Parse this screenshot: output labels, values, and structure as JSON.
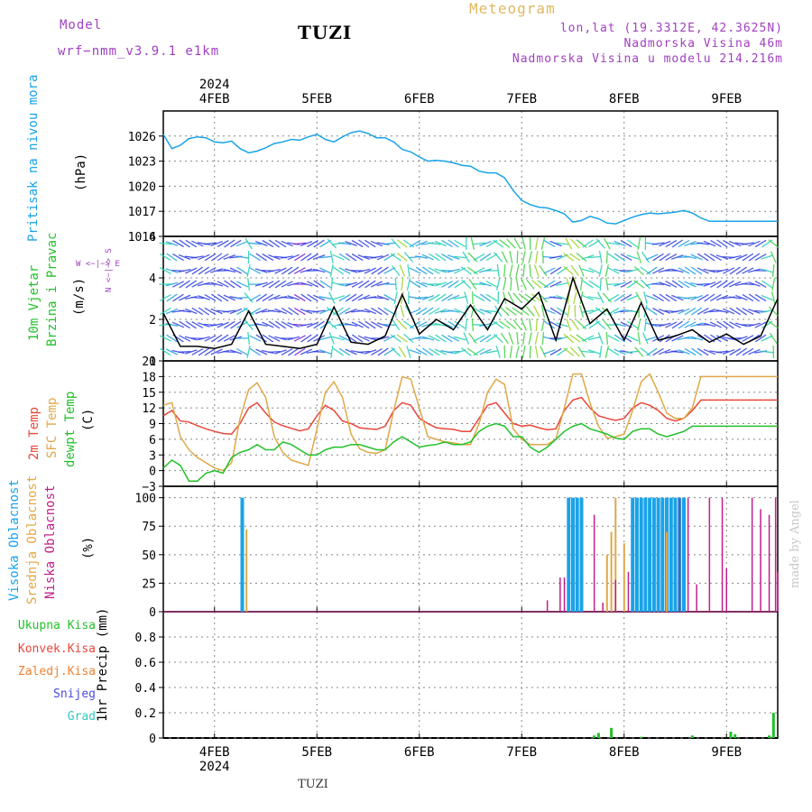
{
  "header": {
    "model_label": "Model",
    "model_name": "wrf−nmm_v3.9.1  e1km",
    "station": "TUZI",
    "meteogram_label": "Meteogram",
    "location": "lon,lat (19.3312E, 42.3625N)",
    "altitude": "Nadmorska Visina 46m",
    "model_altitude": "Nadmorska Visina u modelu 214.216m",
    "top_year": "2024",
    "footer_station": "TUZI",
    "credit": "made by Angel"
  },
  "colors": {
    "pressure": "#1aa3e8",
    "temp2m": "#e8473a",
    "sfc_temp": "#e0a848",
    "dewpt": "#22c02a",
    "high_cloud": "#1aa3e8",
    "mid_cloud": "#e0a848",
    "low_cloud": "#c0208a",
    "precip_total": "#22c02a",
    "precip_conv": "#e8473a",
    "precip_frozen": "#f08030",
    "snow": "#4a4ae0",
    "graupel": "#30c8c0",
    "purple_text": "#a040c0"
  },
  "axis_labels": {
    "pressure": [
      "Pritisak na nivou mora",
      "(hPa)"
    ],
    "wind": [
      "10m Vjetar",
      "Brzina i Pravac",
      "(m/s)"
    ],
    "compass": [
      "W  <−|−>  E",
      "N  <−|−>  S"
    ],
    "temp": [
      "2m Temp",
      "SFC Temp",
      "dewpt Temp",
      "(C)"
    ],
    "cloud": [
      "Visoka Oblacnost",
      "Srednja Oblacnost",
      "Niska Oblacnost",
      "(%)"
    ],
    "precip": [
      "1hr Precip (mm)"
    ]
  },
  "precip_legend": [
    "Ukupna Kisa",
    "Konvek.Kisa",
    "Zaledj.Kisa",
    "Snijeg",
    "Grad"
  ],
  "chart_data": [
    {
      "type": "line",
      "id": "pressure",
      "x_categories": [
        "4FEB",
        "5FEB",
        "6FEB",
        "7FEB",
        "8FEB",
        "9FEB"
      ],
      "x_start": "2024-02-03 12:00",
      "hours_span": 144,
      "ylim": [
        1014,
        1029
      ],
      "yticks": [
        1014,
        1017,
        1020,
        1023,
        1026
      ],
      "series": [
        {
          "name": "Pritisak na nivou mora",
          "x_hours": [
            0,
            2,
            4,
            6,
            8,
            10,
            12,
            14,
            16,
            18,
            20,
            22,
            24,
            26,
            28,
            30,
            32,
            34,
            36,
            38,
            40,
            42,
            44,
            46,
            48,
            50,
            52,
            54,
            56,
            58,
            60,
            62,
            64,
            66,
            68,
            70,
            72,
            74,
            76,
            78,
            80,
            82,
            84,
            86,
            88,
            90,
            92,
            94,
            96,
            98,
            100,
            102,
            104,
            106,
            108,
            110,
            112,
            114,
            116,
            118,
            120,
            122,
            124,
            126,
            128,
            130,
            132,
            134,
            136,
            138,
            140,
            142,
            144
          ],
          "values": [
            1026.2,
            1024.5,
            1024.9,
            1025.7,
            1025.9,
            1025.8,
            1025.3,
            1025.2,
            1025.4,
            1024.5,
            1024.0,
            1024.2,
            1024.6,
            1025.1,
            1025.3,
            1025.6,
            1025.5,
            1025.9,
            1026.2,
            1025.6,
            1025.3,
            1025.9,
            1026.4,
            1026.6,
            1026.3,
            1025.8,
            1025.8,
            1025.3,
            1024.4,
            1024.1,
            1023.5,
            1023.0,
            1023.1,
            1023.0,
            1022.8,
            1022.5,
            1022.4,
            1021.8,
            1021.6,
            1021.6,
            1021.0,
            1019.5,
            1018.3,
            1017.8,
            1017.5,
            1017.4,
            1017.1,
            1016.7,
            1015.7,
            1015.9,
            1016.4,
            1016.1,
            1015.6,
            1015.5,
            1015.9,
            1016.3,
            1016.6,
            1016.8,
            1016.7,
            1016.8,
            1016.9,
            1017.1,
            1016.8,
            1016.2,
            1015.8,
            1015.8,
            1015.8,
            1015.8,
            1015.8,
            1015.8,
            1015.8,
            1015.8,
            1015.8
          ]
        }
      ]
    },
    {
      "type": "line",
      "id": "wind_speed",
      "ylim": [
        0,
        6
      ],
      "yticks": [
        0,
        2,
        4,
        6
      ],
      "series": [
        {
          "name": "10m Vjetar",
          "x_hours": [
            0,
            4,
            8,
            12,
            16,
            20,
            24,
            28,
            32,
            36,
            40,
            44,
            48,
            52,
            56,
            60,
            64,
            68,
            72,
            76,
            80,
            84,
            88,
            92,
            96,
            100,
            104,
            108,
            112,
            116,
            120,
            124,
            128,
            132,
            136,
            140,
            144
          ],
          "values": [
            2.3,
            0.7,
            0.7,
            0.6,
            0.8,
            2.4,
            0.8,
            0.7,
            0.6,
            0.8,
            2.6,
            0.9,
            0.8,
            1.2,
            3.2,
            1.3,
            2.0,
            1.5,
            2.7,
            1.5,
            3.0,
            2.5,
            3.3,
            1.0,
            4.0,
            1.8,
            2.5,
            1.0,
            2.8,
            1.0,
            1.2,
            1.5,
            0.9,
            1.3,
            0.8,
            1.2,
            3.0
          ]
        }
      ]
    },
    {
      "type": "line",
      "id": "temperature",
      "ylim": [
        -3,
        21
      ],
      "yticks": [
        -3,
        0,
        3,
        6,
        9,
        12,
        15,
        18,
        21
      ],
      "series": [
        {
          "name": "2m Temp",
          "x_hours": [
            0,
            2,
            4,
            6,
            8,
            10,
            12,
            14,
            16,
            18,
            20,
            22,
            24,
            26,
            28,
            30,
            32,
            34,
            36,
            38,
            40,
            42,
            44,
            46,
            48,
            50,
            52,
            54,
            56,
            58,
            60,
            62,
            64,
            66,
            68,
            70,
            72,
            74,
            76,
            78,
            80,
            82,
            84,
            86,
            88,
            90,
            92,
            94,
            96,
            98,
            100,
            102,
            104,
            106,
            108,
            110,
            112,
            114,
            116,
            118,
            120,
            122,
            124,
            126,
            128,
            130,
            132,
            134,
            136,
            138,
            140,
            142,
            144
          ],
          "values": [
            10.5,
            11.5,
            9.5,
            9.3,
            8.6,
            8.0,
            7.5,
            7.1,
            7.0,
            9.0,
            12.0,
            13.0,
            11.0,
            9.3,
            8.6,
            8.1,
            7.6,
            8.0,
            10.5,
            12.5,
            11.5,
            9.5,
            9.0,
            8.2,
            8.0,
            7.9,
            8.5,
            11.5,
            13.0,
            12.5,
            10.0,
            9.0,
            8.2,
            8.0,
            7.9,
            7.5,
            7.5,
            10.0,
            12.5,
            13.0,
            11.0,
            9.0,
            8.5,
            8.7,
            8.2,
            7.8,
            8.0,
            11.5,
            13.5,
            14.0,
            12.0,
            10.5,
            10.0,
            9.6,
            10.0,
            12.0,
            13.0,
            12.5,
            11.5,
            10.0,
            9.5,
            10.0,
            11.5,
            13.5,
            13.5,
            13.5,
            13.5,
            13.5,
            13.5,
            13.5,
            13.5,
            13.5,
            13.5
          ]
        },
        {
          "name": "SFC Temp",
          "x_hours": [
            0,
            2,
            4,
            6,
            8,
            10,
            12,
            14,
            16,
            18,
            20,
            22,
            24,
            26,
            28,
            30,
            32,
            34,
            36,
            38,
            40,
            42,
            44,
            46,
            48,
            50,
            52,
            54,
            56,
            58,
            60,
            62,
            64,
            66,
            68,
            70,
            72,
            74,
            76,
            78,
            80,
            82,
            84,
            86,
            88,
            90,
            92,
            94,
            96,
            98,
            100,
            102,
            104,
            106,
            108,
            110,
            112,
            114,
            116,
            118,
            120,
            122,
            124,
            126,
            128,
            130,
            132,
            134,
            136,
            138,
            140,
            142,
            144
          ],
          "values": [
            12.5,
            13.0,
            6.5,
            4.0,
            2.5,
            1.5,
            0.5,
            0.0,
            1.5,
            10.0,
            15.5,
            16.8,
            14.0,
            6.5,
            3.5,
            2.0,
            1.5,
            1.0,
            8.0,
            15.0,
            17.0,
            14.0,
            7.0,
            4.2,
            3.5,
            3.3,
            4.0,
            11.5,
            18.0,
            17.5,
            12.0,
            6.5,
            6.0,
            5.5,
            5.3,
            5.0,
            5.0,
            9.0,
            15.0,
            17.5,
            16.5,
            8.0,
            6.0,
            5.0,
            5.0,
            5.0,
            6.0,
            12.0,
            18.5,
            18.5,
            13.0,
            8.5,
            6.2,
            6.5,
            7.0,
            11.5,
            17.0,
            18.5,
            15.0,
            11.0,
            10.0,
            10.0,
            12.0,
            18.0,
            18.0,
            18.0,
            18.0,
            18.0,
            18.0,
            18.0,
            18.0,
            18.0,
            18.0
          ]
        },
        {
          "name": "dewpt Temp",
          "x_hours": [
            0,
            2,
            4,
            6,
            8,
            10,
            12,
            14,
            16,
            18,
            20,
            22,
            24,
            26,
            28,
            30,
            32,
            34,
            36,
            38,
            40,
            42,
            44,
            46,
            48,
            50,
            52,
            54,
            56,
            58,
            60,
            62,
            64,
            66,
            68,
            70,
            72,
            74,
            76,
            78,
            80,
            82,
            84,
            86,
            88,
            90,
            92,
            94,
            96,
            98,
            100,
            102,
            104,
            106,
            108,
            110,
            112,
            114,
            116,
            118,
            120,
            122,
            124,
            126,
            128,
            130,
            132,
            134,
            136,
            138,
            140,
            142,
            144
          ],
          "values": [
            0.5,
            2.0,
            1.0,
            -2.0,
            -2.0,
            -0.5,
            0.0,
            -0.5,
            2.5,
            3.5,
            4.0,
            5.0,
            4.0,
            4.0,
            5.5,
            5.0,
            4.0,
            3.0,
            3.0,
            4.0,
            4.5,
            4.5,
            5.0,
            5.0,
            4.5,
            4.0,
            4.0,
            5.5,
            6.5,
            5.5,
            4.5,
            4.8,
            5.0,
            5.5,
            5.0,
            5.0,
            5.5,
            7.5,
            8.5,
            9.0,
            8.5,
            6.5,
            6.5,
            4.5,
            3.5,
            4.5,
            6.0,
            7.5,
            8.5,
            9.0,
            8.0,
            7.5,
            7.0,
            6.2,
            6.0,
            7.5,
            8.0,
            8.0,
            7.0,
            6.5,
            7.0,
            7.5,
            8.5,
            8.5,
            8.5,
            8.5,
            8.5,
            8.5,
            8.5,
            8.5,
            8.5,
            8.5,
            8.5
          ]
        }
      ]
    },
    {
      "type": "bar",
      "id": "cloud_cover",
      "ylim": [
        0,
        110
      ],
      "yticks": [
        0,
        25,
        50,
        75,
        100
      ],
      "series": [
        {
          "name": "Visoka Oblacnost",
          "x_hours": [
            18.5,
            95,
            96,
            97,
            98,
            110,
            111,
            112,
            113,
            114,
            115,
            116,
            117,
            118,
            119,
            120,
            121,
            122
          ],
          "values": [
            100,
            100,
            100,
            100,
            100,
            100,
            100,
            100,
            100,
            100,
            100,
            100,
            100,
            100,
            100,
            100,
            100,
            100
          ]
        },
        {
          "name": "Srednja Oblacnost",
          "x_hours": [
            19.5,
            104,
            105,
            106,
            108,
            118
          ],
          "values": [
            72,
            50,
            70,
            100,
            60,
            70
          ]
        },
        {
          "name": "Niska Oblacnost",
          "x_hours": [
            90,
            93,
            94,
            101,
            103,
            106,
            109,
            121,
            123,
            125,
            128,
            131,
            132,
            138,
            140,
            142,
            143.5,
            144
          ],
          "values": [
            10,
            30,
            30,
            85,
            8,
            28,
            35,
            100,
            100,
            24,
            100,
            100,
            38,
            100,
            90,
            85,
            100,
            35
          ]
        }
      ]
    },
    {
      "type": "bar",
      "id": "precip_1hr",
      "ylim": [
        0,
        1.0
      ],
      "yticks": [
        0,
        0.2,
        0.4,
        0.6,
        0.8
      ],
      "series": [
        {
          "name": "Ukupna Kisa",
          "x_hours": [
            101,
            102,
            105,
            112,
            124,
            133,
            134,
            142,
            143
          ],
          "values": [
            0.02,
            0.04,
            0.08,
            0.01,
            0.02,
            0.05,
            0.03,
            0.02,
            0.2
          ]
        }
      ]
    }
  ]
}
